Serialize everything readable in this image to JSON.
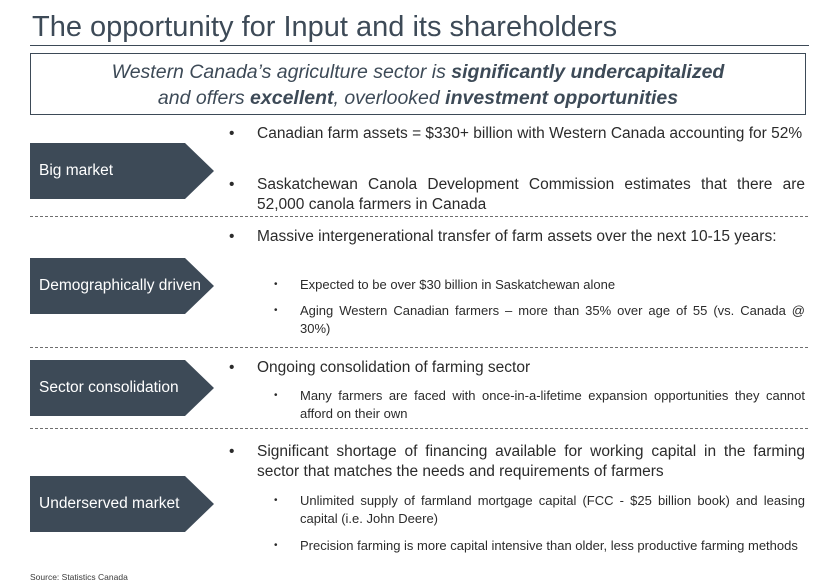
{
  "title": "The opportunity for Input and its shareholders",
  "callout": {
    "line1_a": "Western Canada’s agriculture sector is ",
    "line1_b": "significantly undercapitalized",
    "line2_a": "and offers ",
    "line2_b": "excellent",
    "line2_c": ", overlooked ",
    "line2_d": "investment opportunities"
  },
  "sections": [
    {
      "label": "Big market",
      "bullets": [
        "Canadian farm assets = $330+ billion with Western Canada accounting for 52%",
        "Saskatchewan Canola Development Commission estimates that there are 52,000 canola farmers in Canada"
      ]
    },
    {
      "label": "Demographically driven",
      "bullets": [
        "Massive intergenerational transfer of farm assets over the next 10-15 years:"
      ],
      "sub_bullets": [
        "Expected to be over $30 billion in Saskatchewan alone",
        "Aging Western Canadian farmers – more than 35% over age of 55 (vs. Canada @ 30%)"
      ]
    },
    {
      "label": "Sector consolidation",
      "bullets": [
        "Ongoing consolidation of farming sector"
      ],
      "sub_bullets": [
        "Many farmers are faced with once-in-a-lifetime expansion opportunities they cannot afford on  their own"
      ]
    },
    {
      "label": "Underserved market",
      "bullets": [
        "Significant shortage of financing available for working capital in the farming sector that matches the needs and requirements of farmers"
      ],
      "sub_bullets": [
        "Unlimited supply of farmland mortgage capital (FCC - $25 billion book) and leasing capital (i.e. John Deere)",
        "Precision farming is more capital intensive than older, less productive farming methods"
      ]
    }
  ],
  "source": "Source: Statistics Canada",
  "colors": {
    "accent": "#3d4a57",
    "text": "#2b2b2b",
    "divider": "#6e6e6e"
  }
}
